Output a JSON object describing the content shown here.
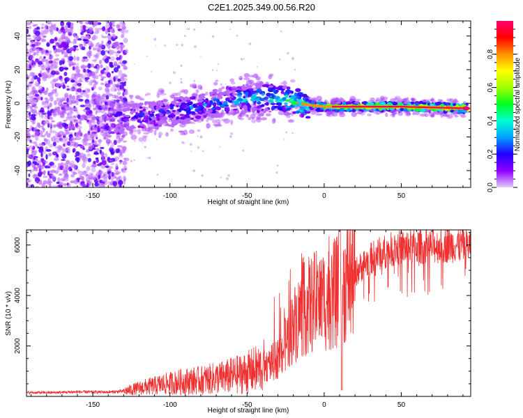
{
  "figure": {
    "title": "C2E1.2025.349.00.56.R20"
  },
  "chart_data": [
    {
      "type": "heatmap",
      "title": "",
      "xlabel": "Height of straight line (km)",
      "ylabel": "Frequency (Hz)",
      "xlim": [
        -193,
        95
      ],
      "ylim": [
        -50,
        49
      ],
      "xticks": [
        -150,
        -100,
        -50,
        0,
        50
      ],
      "yticks": [
        -40,
        -20,
        0,
        20,
        40
      ],
      "colorbar": {
        "label": "Normalized spectral amplitude",
        "range": [
          0,
          1
        ],
        "ticks": [
          0.0,
          0.2,
          0.4,
          0.6,
          0.8
        ],
        "colors": [
          "#e6ccff",
          "#8c00ff",
          "#2200ff",
          "#00a0ff",
          "#00ffd0",
          "#00ff20",
          "#a0ff00",
          "#ffff00",
          "#ff9000",
          "#ff0000",
          "#ff0070"
        ]
      },
      "ridge": [
        {
          "x": -130,
          "y": -9
        },
        {
          "x": -110,
          "y": -7
        },
        {
          "x": -90,
          "y": -4
        },
        {
          "x": -70,
          "y": 0
        },
        {
          "x": -50,
          "y": 3
        },
        {
          "x": -35,
          "y": 3
        },
        {
          "x": -20,
          "y": 1
        },
        {
          "x": -10,
          "y": -1
        },
        {
          "x": 0,
          "y": -2
        },
        {
          "x": 5,
          "y": -2
        },
        {
          "x": 50,
          "y": -2
        },
        {
          "x": 93,
          "y": -3
        }
      ],
      "levels": [
        {
          "x": -160,
          "value": 0.1
        },
        {
          "x": -130,
          "value": 0.25
        },
        {
          "x": -100,
          "value": 0.3
        },
        {
          "x": -60,
          "value": 0.4
        },
        {
          "x": -20,
          "value": 0.55
        },
        {
          "x": 0,
          "value": 0.75
        },
        {
          "x": 20,
          "value": 0.85
        },
        {
          "x": 60,
          "value": 0.9
        },
        {
          "x": 93,
          "value": 1.0
        }
      ]
    },
    {
      "type": "line",
      "title": "",
      "xlabel": "Height of straight line (km)",
      "ylabel": "SNR (10 * v/v)",
      "xlim": [
        -193,
        95
      ],
      "ylim": [
        0,
        6600
      ],
      "xticks": [
        -150,
        -100,
        -50,
        0,
        50
      ],
      "yticks": [
        2000,
        4000,
        6000
      ],
      "color": "#f03030",
      "series": [
        {
          "name": "SNR",
          "x": [
            -193,
            -180,
            -170,
            -160,
            -150,
            -140,
            -130,
            -125,
            -120,
            -115,
            -110,
            -105,
            -100,
            -95,
            -90,
            -85,
            -80,
            -75,
            -70,
            -65,
            -60,
            -55,
            -50,
            -45,
            -40,
            -35,
            -30,
            -27,
            -25,
            -22,
            -20,
            -17,
            -15,
            -12,
            -10,
            -7,
            -5,
            -2,
            0,
            2,
            5,
            8,
            10,
            12,
            15,
            20,
            25,
            30,
            35,
            40,
            45,
            50,
            60,
            70,
            80,
            90,
            95
          ],
          "y": [
            150,
            150,
            160,
            180,
            170,
            170,
            200,
            260,
            320,
            380,
            420,
            480,
            520,
            560,
            600,
            620,
            640,
            680,
            720,
            760,
            820,
            880,
            950,
            1050,
            1150,
            1300,
            1500,
            1800,
            2100,
            2500,
            2800,
            3100,
            3300,
            3500,
            3600,
            3700,
            3750,
            3800,
            3850,
            3900,
            4000,
            4100,
            4200,
            4350,
            4600,
            4900,
            5200,
            5450,
            5650,
            5750,
            5850,
            5900,
            5950,
            5950,
            6000,
            6000,
            6000
          ]
        }
      ]
    }
  ]
}
